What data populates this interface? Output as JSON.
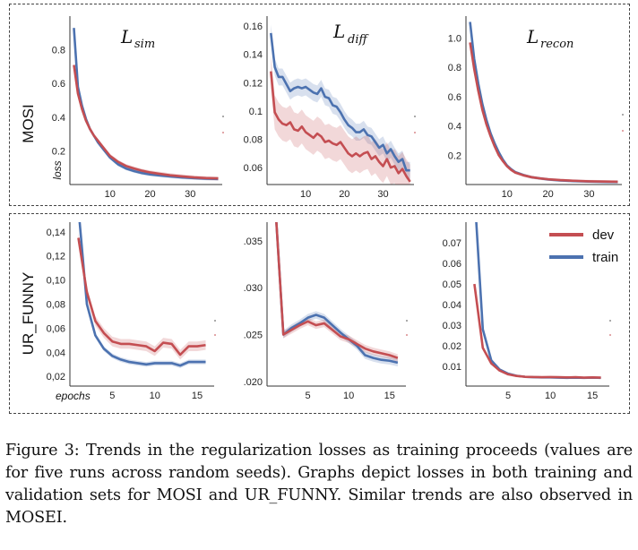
{
  "caption": {
    "label": "Figure 3:",
    "text": "Trends in the regularization losses as training proceeds (values are for five runs across random seeds). Graphs depict losses in both training and validation sets for MOSI and UR_FUNNY. Similar trends are also observed in MOSEI."
  },
  "rows": [
    {
      "name": "MOSI",
      "axis_label": "loss"
    },
    {
      "name": "UR_FUNNY",
      "axis_label": "epochs"
    }
  ],
  "legend": [
    {
      "name": "dev",
      "color": "#c44e52"
    },
    {
      "name": "train",
      "color": "#4c72b0"
    }
  ],
  "columns": [
    {
      "script": "L",
      "sub": "sim"
    },
    {
      "script": "L",
      "sub": "diff"
    },
    {
      "script": "L",
      "sub": "recon"
    }
  ],
  "chart_data": [
    {
      "type": "line",
      "row": "MOSI",
      "title": "𝓛 sim",
      "xlim": [
        0,
        38
      ],
      "ylim": [
        0,
        1.0
      ],
      "xticks": [
        10,
        20,
        30
      ],
      "yticks": [
        0.2,
        0.4,
        0.6,
        0.8
      ],
      "series": [
        {
          "name": "train",
          "color": "#4c72b0",
          "x": [
            1,
            2,
            3,
            4,
            5,
            6,
            7,
            8,
            9,
            10,
            12,
            14,
            16,
            18,
            20,
            22,
            25,
            28,
            31,
            34,
            37
          ],
          "y": [
            0.93,
            0.58,
            0.47,
            0.39,
            0.33,
            0.29,
            0.25,
            0.22,
            0.19,
            0.16,
            0.12,
            0.095,
            0.08,
            0.068,
            0.06,
            0.055,
            0.048,
            0.042,
            0.038,
            0.035,
            0.033
          ],
          "band": 0.01
        },
        {
          "name": "dev",
          "color": "#c44e52",
          "x": [
            1,
            2,
            3,
            4,
            5,
            6,
            7,
            8,
            9,
            10,
            12,
            14,
            16,
            18,
            20,
            22,
            25,
            28,
            31,
            34,
            37
          ],
          "y": [
            0.71,
            0.54,
            0.45,
            0.38,
            0.33,
            0.29,
            0.26,
            0.23,
            0.2,
            0.17,
            0.135,
            0.11,
            0.095,
            0.082,
            0.072,
            0.065,
            0.055,
            0.048,
            0.042,
            0.038,
            0.036
          ],
          "band": 0.012
        }
      ]
    },
    {
      "type": "line",
      "row": "MOSI",
      "title": "𝓛 diff",
      "xlim": [
        0,
        38
      ],
      "ylim": [
        0.048,
        0.167
      ],
      "xticks": [
        10,
        20,
        30
      ],
      "yticks": [
        0.06,
        0.08,
        0.1,
        0.12,
        0.14,
        0.16
      ],
      "series": [
        {
          "name": "train",
          "color": "#4c72b0",
          "x": [
            1,
            2,
            3,
            4,
            5,
            6,
            7,
            8,
            9,
            10,
            11,
            12,
            13,
            14,
            15,
            16,
            17,
            18,
            19,
            20,
            21,
            22,
            23,
            24,
            25,
            26,
            27,
            28,
            29,
            30,
            31,
            32,
            33,
            34,
            35,
            36,
            37
          ],
          "y": [
            0.155,
            0.131,
            0.124,
            0.124,
            0.119,
            0.114,
            0.116,
            0.117,
            0.116,
            0.117,
            0.115,
            0.113,
            0.112,
            0.116,
            0.11,
            0.109,
            0.104,
            0.103,
            0.099,
            0.094,
            0.09,
            0.088,
            0.085,
            0.085,
            0.087,
            0.083,
            0.082,
            0.078,
            0.074,
            0.076,
            0.07,
            0.073,
            0.068,
            0.064,
            0.066,
            0.058,
            0.058
          ],
          "band": 0.006
        },
        {
          "name": "dev",
          "color": "#c44e52",
          "x": [
            1,
            2,
            3,
            4,
            5,
            6,
            7,
            8,
            9,
            10,
            11,
            12,
            13,
            14,
            15,
            16,
            17,
            18,
            19,
            20,
            21,
            22,
            23,
            24,
            25,
            26,
            27,
            28,
            29,
            30,
            31,
            32,
            33,
            34,
            35,
            36,
            37
          ],
          "y": [
            0.128,
            0.099,
            0.094,
            0.091,
            0.09,
            0.092,
            0.087,
            0.086,
            0.089,
            0.085,
            0.083,
            0.081,
            0.084,
            0.082,
            0.078,
            0.079,
            0.077,
            0.076,
            0.078,
            0.074,
            0.07,
            0.068,
            0.07,
            0.068,
            0.07,
            0.071,
            0.066,
            0.068,
            0.064,
            0.061,
            0.066,
            0.06,
            0.061,
            0.056,
            0.059,
            0.054,
            0.05
          ],
          "band": 0.012
        }
      ]
    },
    {
      "type": "line",
      "row": "MOSI",
      "title": "𝓛 recon",
      "xlim": [
        0,
        38
      ],
      "ylim": [
        0,
        1.15
      ],
      "xticks": [
        10,
        20,
        30
      ],
      "yticks": [
        0.2,
        0.4,
        0.6,
        0.8,
        1.0
      ],
      "ytick_labels": [
        "0.2",
        "0.4",
        "0.6",
        "0.8",
        "1.0"
      ],
      "series": [
        {
          "name": "train",
          "color": "#4c72b0",
          "x": [
            1,
            2,
            3,
            4,
            5,
            6,
            7,
            8,
            9,
            10,
            11,
            12,
            14,
            16,
            18,
            20,
            23,
            26,
            30,
            34,
            37
          ],
          "y": [
            1.11,
            0.86,
            0.69,
            0.55,
            0.44,
            0.35,
            0.28,
            0.22,
            0.17,
            0.13,
            0.105,
            0.085,
            0.065,
            0.05,
            0.042,
            0.035,
            0.028,
            0.024,
            0.02,
            0.018,
            0.017
          ],
          "band": 0.01
        },
        {
          "name": "dev",
          "color": "#c44e52",
          "x": [
            1,
            2,
            3,
            4,
            5,
            6,
            7,
            8,
            9,
            10,
            11,
            12,
            14,
            16,
            18,
            20,
            23,
            26,
            30,
            34,
            37
          ],
          "y": [
            0.97,
            0.79,
            0.64,
            0.51,
            0.41,
            0.33,
            0.26,
            0.2,
            0.16,
            0.125,
            0.1,
            0.082,
            0.063,
            0.05,
            0.042,
            0.036,
            0.03,
            0.026,
            0.022,
            0.02,
            0.019
          ],
          "band": 0.01
        }
      ]
    },
    {
      "type": "line",
      "row": "UR_FUNNY",
      "title": "",
      "xlim": [
        0,
        17
      ],
      "ylim": [
        0.012,
        0.148
      ],
      "xticks": [
        5,
        10,
        15
      ],
      "yticks": [
        0.02,
        0.04,
        0.06,
        0.08,
        0.1,
        0.12,
        0.14
      ],
      "ytick_labels": [
        "0,02",
        "0,04",
        "0,06",
        "0,08",
        "0,10",
        "0,12",
        "0,14"
      ],
      "series": [
        {
          "name": "train",
          "color": "#4c72b0",
          "x": [
            1,
            2,
            3,
            4,
            5,
            6,
            7,
            8,
            9,
            10,
            11,
            12,
            13,
            14,
            15,
            16
          ],
          "y": [
            0.16,
            0.08,
            0.054,
            0.043,
            0.037,
            0.034,
            0.032,
            0.031,
            0.03,
            0.031,
            0.031,
            0.031,
            0.029,
            0.032,
            0.032,
            0.032
          ],
          "band": 0.002
        },
        {
          "name": "dev",
          "color": "#c44e52",
          "x": [
            1,
            2,
            3,
            4,
            5,
            6,
            7,
            8,
            9,
            10,
            11,
            12,
            13,
            14,
            15,
            16
          ],
          "y": [
            0.135,
            0.09,
            0.066,
            0.056,
            0.049,
            0.047,
            0.047,
            0.046,
            0.045,
            0.041,
            0.048,
            0.047,
            0.038,
            0.045,
            0.045,
            0.046
          ],
          "band": 0.004
        }
      ]
    },
    {
      "type": "line",
      "row": "UR_FUNNY",
      "title": "",
      "xlim": [
        0,
        17
      ],
      "ylim": [
        0.0195,
        0.037
      ],
      "xticks": [
        5,
        10,
        15
      ],
      "yticks": [
        0.02,
        0.025,
        0.03,
        0.035
      ],
      "ytick_labels": [
        ".020",
        ".025",
        ".030",
        ".035"
      ],
      "series": [
        {
          "name": "train",
          "color": "#4c72b0",
          "x": [
            1,
            2,
            3,
            4,
            5,
            6,
            7,
            8,
            9,
            10,
            11,
            12,
            13,
            14,
            15,
            16
          ],
          "y": [
            0.039,
            0.025,
            0.0257,
            0.0262,
            0.0268,
            0.0271,
            0.0268,
            0.026,
            0.0252,
            0.0245,
            0.0238,
            0.0228,
            0.0225,
            0.0223,
            0.0222,
            0.022
          ],
          "band": 0.0004
        },
        {
          "name": "dev",
          "color": "#c44e52",
          "x": [
            1,
            2,
            3,
            4,
            5,
            6,
            7,
            8,
            9,
            10,
            11,
            12,
            13,
            14,
            15,
            16
          ],
          "y": [
            0.039,
            0.025,
            0.0255,
            0.026,
            0.0264,
            0.026,
            0.0262,
            0.0255,
            0.0248,
            0.0245,
            0.024,
            0.0235,
            0.0232,
            0.023,
            0.0228,
            0.0225
          ],
          "band": 0.0004
        }
      ]
    },
    {
      "type": "line",
      "row": "UR_FUNNY",
      "title": "",
      "xlim": [
        0,
        17
      ],
      "ylim": [
        0.0005,
        0.08
      ],
      "xticks": [
        5,
        10,
        15
      ],
      "yticks": [
        0.01,
        0.02,
        0.03,
        0.04,
        0.05,
        0.06,
        0.07
      ],
      "ytick_labels": [
        "0.01",
        "0.02",
        "0.03",
        "0.04",
        "0.05",
        "0.06",
        "0.07"
      ],
      "series": [
        {
          "name": "train",
          "color": "#4c72b0",
          "x": [
            1,
            2,
            3,
            4,
            5,
            6,
            7,
            8,
            9,
            10,
            11,
            12,
            13,
            14,
            15,
            16
          ],
          "y": [
            0.095,
            0.028,
            0.013,
            0.0085,
            0.0065,
            0.0055,
            0.005,
            0.0048,
            0.0047,
            0.0047,
            0.0046,
            0.0045,
            0.0046,
            0.0045,
            0.0046,
            0.0045
          ],
          "band": 0.0005
        },
        {
          "name": "dev",
          "color": "#c44e52",
          "x": [
            1,
            2,
            3,
            4,
            5,
            6,
            7,
            8,
            9,
            10,
            11,
            12,
            13,
            14,
            15,
            16
          ],
          "y": [
            0.05,
            0.019,
            0.0115,
            0.008,
            0.0062,
            0.0054,
            0.005,
            0.0049,
            0.0048,
            0.0049,
            0.0048,
            0.0047,
            0.0048,
            0.0046,
            0.0047,
            0.0046
          ],
          "band": 0.0005
        }
      ]
    }
  ]
}
